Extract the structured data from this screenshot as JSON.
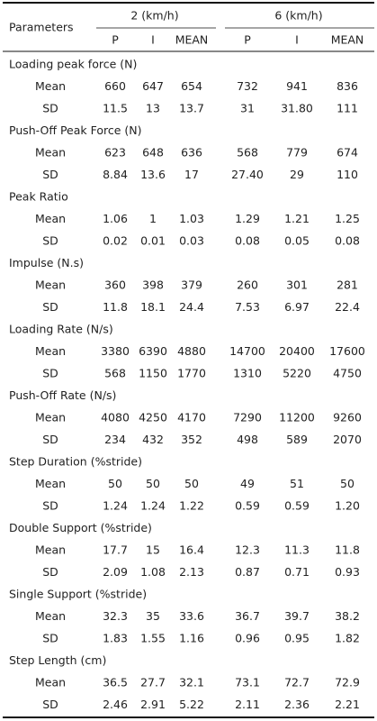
{
  "header": {
    "parameters": "Parameters",
    "groups": [
      "2 (km/h)",
      "6 (km/h)"
    ],
    "columns": [
      "P",
      "I",
      "MEAN",
      "P",
      "I",
      "MEAN"
    ]
  },
  "sections": [
    {
      "title": "Loading peak force (N)",
      "rows": [
        {
          "label": "Mean",
          "values": [
            "660",
            "647",
            "654",
            "732",
            "941",
            "836"
          ]
        },
        {
          "label": "SD",
          "values": [
            "11.5",
            "13",
            "13.7",
            "31",
            "31.80",
            "111"
          ]
        }
      ]
    },
    {
      "title": "Push-Off Peak Force (N)",
      "rows": [
        {
          "label": "Mean",
          "values": [
            "623",
            "648",
            "636",
            "568",
            "779",
            "674"
          ]
        },
        {
          "label": "SD",
          "values": [
            "8.84",
            "13.6",
            "17",
            "27.40",
            "29",
            "110"
          ]
        }
      ]
    },
    {
      "title": "Peak Ratio",
      "rows": [
        {
          "label": "Mean",
          "values": [
            "1.06",
            "1",
            "1.03",
            "1.29",
            "1.21",
            "1.25"
          ]
        },
        {
          "label": "SD",
          "values": [
            "0.02",
            "0.01",
            "0.03",
            "0.08",
            "0.05",
            "0.08"
          ]
        }
      ]
    },
    {
      "title": "Impulse (N.s)",
      "rows": [
        {
          "label": "Mean",
          "values": [
            "360",
            "398",
            "379",
            "260",
            "301",
            "281"
          ]
        },
        {
          "label": "SD",
          "values": [
            "11.8",
            "18.1",
            "24.4",
            "7.53",
            "6.97",
            "22.4"
          ]
        }
      ]
    },
    {
      "title": "Loading Rate (N/s)",
      "rows": [
        {
          "label": "Mean",
          "values": [
            "3380",
            "6390",
            "4880",
            "14700",
            "20400",
            "17600"
          ]
        },
        {
          "label": "SD",
          "values": [
            "568",
            "1150",
            "1770",
            "1310",
            "5220",
            "4750"
          ]
        }
      ]
    },
    {
      "title": "Push-Off Rate (N/s)",
      "rows": [
        {
          "label": "Mean",
          "values": [
            "4080",
            "4250",
            "4170",
            "7290",
            "11200",
            "9260"
          ]
        },
        {
          "label": "SD",
          "values": [
            "234",
            "432",
            "352",
            "498",
            "589",
            "2070"
          ]
        }
      ]
    },
    {
      "title": "Step Duration (%stride)",
      "rows": [
        {
          "label": "Mean",
          "values": [
            "50",
            "50",
            "50",
            "49",
            "51",
            "50"
          ]
        },
        {
          "label": "SD",
          "values": [
            "1.24",
            "1.24",
            "1.22",
            "0.59",
            "0.59",
            "1.20"
          ]
        }
      ]
    },
    {
      "title": "Double Support (%stride)",
      "rows": [
        {
          "label": "Mean",
          "values": [
            "17.7",
            "15",
            "16.4",
            "12.3",
            "11.3",
            "11.8"
          ]
        },
        {
          "label": "SD",
          "values": [
            "2.09",
            "1.08",
            "2.13",
            "0.87",
            "0.71",
            "0.93"
          ]
        }
      ]
    },
    {
      "title": "Single Support (%stride)",
      "rows": [
        {
          "label": "Mean",
          "values": [
            "32.3",
            "35",
            "33.6",
            "36.7",
            "39.7",
            "38.2"
          ]
        },
        {
          "label": "SD",
          "values": [
            "1.83",
            "1.55",
            "1.16",
            "0.96",
            "0.95",
            "1.82"
          ]
        }
      ]
    },
    {
      "title": "Step Length (cm)",
      "rows": [
        {
          "label": "Mean",
          "values": [
            "36.5",
            "27.7",
            "32.1",
            "73.1",
            "72.7",
            "72.9"
          ]
        },
        {
          "label": "SD",
          "values": [
            "2.46",
            "2.91",
            "5.22",
            "2.11",
            "2.36",
            "2.21"
          ]
        }
      ]
    }
  ]
}
